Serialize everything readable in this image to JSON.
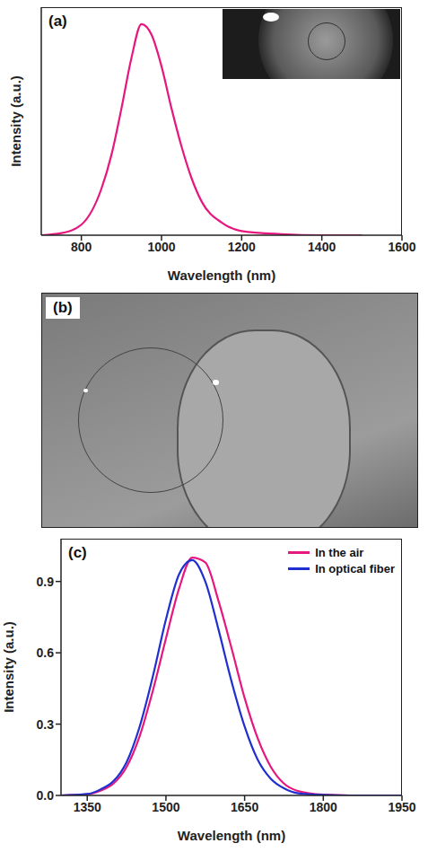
{
  "chart_data": [
    {
      "type": "line",
      "title": "(a)",
      "xlabel": "Wavelength (nm)",
      "ylabel": "Intensity (a.u.)",
      "x": [
        700,
        750,
        800,
        850,
        875,
        900,
        925,
        950,
        975,
        1000,
        1025,
        1050,
        1075,
        1100,
        1150,
        1200,
        1300,
        1400,
        1500
      ],
      "values": [
        0,
        0.01,
        0.05,
        0.22,
        0.38,
        0.6,
        0.84,
        1.0,
        0.95,
        0.8,
        0.6,
        0.42,
        0.27,
        0.16,
        0.06,
        0.02,
        0.005,
        0,
        0
      ],
      "color": "#e6177f",
      "xlim": [
        700,
        1600
      ],
      "xticks": [
        800,
        1000,
        1200,
        1400,
        1600
      ],
      "ylim": [
        0,
        1.08
      ],
      "tick_labels": "x"
    },
    {
      "type": "image",
      "title": "(b)"
    },
    {
      "type": "line",
      "title": "(c)",
      "xlabel": "Wavelength (nm)",
      "ylabel": "Intensity (a.u.)",
      "x": [
        1300,
        1350,
        1375,
        1400,
        1425,
        1450,
        1475,
        1500,
        1525,
        1550,
        1575,
        1600,
        1625,
        1650,
        1675,
        1700,
        1725,
        1750,
        1800,
        1850,
        1900,
        1950
      ],
      "series": [
        {
          "name": "In the air",
          "color": "#e6177f",
          "values": [
            0,
            0.005,
            0.02,
            0.05,
            0.12,
            0.25,
            0.44,
            0.66,
            0.87,
            1.0,
            0.98,
            0.82,
            0.62,
            0.41,
            0.24,
            0.12,
            0.05,
            0.02,
            0.003,
            0,
            0,
            0
          ]
        },
        {
          "name": "In optical fiber",
          "color": "#1f2fd0",
          "values": [
            0,
            0.006,
            0.025,
            0.06,
            0.14,
            0.29,
            0.5,
            0.74,
            0.93,
            0.99,
            0.9,
            0.7,
            0.48,
            0.29,
            0.15,
            0.07,
            0.03,
            0.01,
            0.002,
            0,
            0,
            0
          ]
        }
      ],
      "xlim": [
        1300,
        1950
      ],
      "xticks": [
        1350,
        1500,
        1650,
        1800,
        1950
      ],
      "ylim": [
        0,
        1.08
      ],
      "yticks": [
        {
          "value": 0,
          "label": "0.0"
        },
        0.3,
        0.6,
        0.9
      ],
      "legend": "upper right"
    }
  ]
}
